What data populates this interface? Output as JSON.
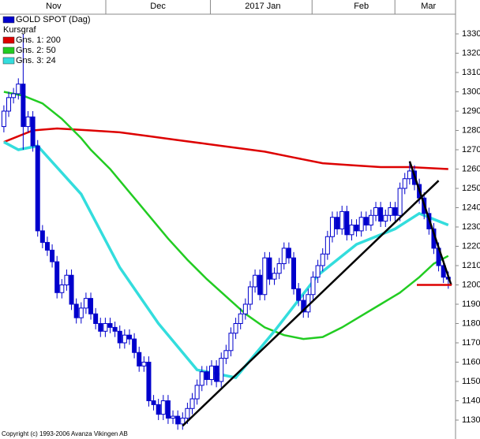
{
  "chart_data": {
    "type": "candlestick",
    "legend_title": "Kursgraf",
    "legend": "upper left",
    "footnote": "Copyright (c) 1993-2006 Avanza Vikingen AB",
    "xlim": [
      -0.8,
      93.5
    ],
    "xticks": [
      {
        "value": 10.3,
        "label": "Nov"
      },
      {
        "value": 31.9,
        "label": "Dec"
      },
      {
        "value": 53.6,
        "label": "2017 Jan"
      },
      {
        "value": 74,
        "label": "Feb"
      },
      {
        "value": 87.9,
        "label": "Mar"
      }
    ],
    "ylim": [
      1120.2,
      1340.2
    ],
    "yticks": [
      1130,
      1140,
      1150,
      1160,
      1170,
      1180,
      1190,
      1200,
      1210,
      1220,
      1230,
      1240,
      1250,
      1260,
      1270,
      1280,
      1290,
      1300,
      1310,
      1320,
      1330
    ],
    "series": [
      {
        "name": "GOLD SPOT (Dag)",
        "color": "#0000cc",
        "x": [
          0,
          1,
          2,
          3,
          4,
          5,
          6,
          7,
          8,
          9,
          10,
          11,
          12,
          13,
          14,
          15,
          16,
          17,
          18,
          19,
          20,
          21,
          22,
          23,
          24,
          25,
          26,
          27,
          28,
          29,
          30,
          31,
          32,
          33,
          34,
          35,
          36,
          37,
          38,
          39,
          40,
          41,
          42,
          43,
          44,
          45,
          46,
          47,
          48,
          49,
          50,
          51,
          52,
          53,
          54,
          55,
          56,
          57,
          58,
          59,
          60,
          61,
          62,
          63,
          64,
          65,
          66,
          67,
          68,
          69,
          70,
          71,
          72,
          73,
          74,
          75,
          76,
          77,
          78,
          79,
          80,
          81,
          82,
          83,
          84,
          85,
          86,
          87,
          88,
          89,
          90,
          91,
          92
        ],
        "open": [
          1282,
          1290,
          1297,
          1299,
          1304,
          1282,
          1287,
          1272,
          1228,
          1222,
          1218,
          1212,
          1196,
          1200,
          1205,
          1190,
          1183,
          1188,
          1193,
          1185,
          1180,
          1176,
          1180,
          1178,
          1176,
          1170,
          1174,
          1172,
          1165,
          1158,
          1160,
          1140,
          1138,
          1133,
          1140,
          1131,
          1132,
          1128,
          1131,
          1136,
          1141,
          1148,
          1155,
          1151,
          1158,
          1150,
          1162,
          1166,
          1175,
          1180,
          1185,
          1190,
          1199,
          1205,
          1195,
          1214,
          1203,
          1206,
          1211,
          1219,
          1214,
          1198,
          1192,
          1186,
          1195,
          1204,
          1210,
          1216,
          1225,
          1235,
          1229,
          1238,
          1226,
          1231,
          1228,
          1235,
          1231,
          1236,
          1240,
          1233,
          1236,
          1240,
          1236,
          1250,
          1255,
          1259,
          1252,
          1245,
          1237,
          1229,
          1219,
          1210,
          1204
        ],
        "high": [
          1293,
          1300,
          1302,
          1307,
          1330,
          1290,
          1290,
          1275,
          1231,
          1225,
          1221,
          1215,
          1203,
          1208,
          1208,
          1193,
          1191,
          1196,
          1196,
          1188,
          1183,
          1183,
          1183,
          1181,
          1179,
          1177,
          1177,
          1175,
          1168,
          1163,
          1163,
          1143,
          1141,
          1143,
          1143,
          1135,
          1135,
          1134,
          1139,
          1144,
          1151,
          1158,
          1158,
          1161,
          1161,
          1165,
          1169,
          1178,
          1183,
          1188,
          1193,
          1202,
          1208,
          1208,
          1217,
          1217,
          1209,
          1214,
          1222,
          1222,
          1217,
          1201,
          1195,
          1198,
          1207,
          1213,
          1219,
          1228,
          1238,
          1238,
          1241,
          1241,
          1234,
          1234,
          1238,
          1238,
          1239,
          1243,
          1243,
          1239,
          1243,
          1243,
          1253,
          1258,
          1264,
          1262,
          1255,
          1248,
          1240,
          1232,
          1222,
          1213,
          1207
        ],
        "low": [
          1279,
          1287,
          1294,
          1296,
          1270,
          1279,
          1269,
          1225,
          1219,
          1215,
          1209,
          1193,
          1193,
          1197,
          1187,
          1180,
          1180,
          1185,
          1182,
          1177,
          1173,
          1173,
          1175,
          1173,
          1167,
          1167,
          1169,
          1162,
          1155,
          1155,
          1137,
          1135,
          1130,
          1130,
          1128,
          1128,
          1125,
          1125,
          1128,
          1133,
          1138,
          1145,
          1148,
          1148,
          1147,
          1147,
          1159,
          1163,
          1172,
          1177,
          1182,
          1187,
          1196,
          1192,
          1192,
          1200,
          1200,
          1203,
          1208,
          1211,
          1195,
          1189,
          1183,
          1183,
          1192,
          1201,
          1207,
          1213,
          1222,
          1226,
          1226,
          1223,
          1223,
          1225,
          1225,
          1228,
          1228,
          1233,
          1230,
          1230,
          1233,
          1233,
          1233,
          1247,
          1252,
          1249,
          1242,
          1234,
          1226,
          1216,
          1207,
          1201,
          1198
        ],
        "close": [
          1290,
          1297,
          1299,
          1304,
          1282,
          1287,
          1272,
          1228,
          1222,
          1218,
          1212,
          1196,
          1200,
          1205,
          1190,
          1183,
          1188,
          1193,
          1185,
          1180,
          1176,
          1180,
          1178,
          1176,
          1170,
          1174,
          1172,
          1165,
          1158,
          1160,
          1140,
          1138,
          1133,
          1140,
          1131,
          1132,
          1128,
          1131,
          1136,
          1141,
          1148,
          1155,
          1151,
          1158,
          1150,
          1162,
          1166,
          1175,
          1180,
          1185,
          1190,
          1199,
          1205,
          1195,
          1214,
          1203,
          1206,
          1211,
          1219,
          1214,
          1198,
          1192,
          1186,
          1195,
          1204,
          1210,
          1216,
          1225,
          1235,
          1229,
          1238,
          1226,
          1231,
          1228,
          1235,
          1231,
          1236,
          1240,
          1233,
          1236,
          1240,
          1236,
          1250,
          1255,
          1259,
          1252,
          1245,
          1237,
          1229,
          1219,
          1210,
          1204,
          1203
        ]
      }
    ],
    "lines": [
      {
        "name": "Gns. 1: 200",
        "color": "#dd0000",
        "x": [
          0,
          6,
          11,
          18,
          24,
          30,
          36,
          42,
          48,
          54,
          60,
          66,
          72,
          78,
          84,
          92
        ],
        "values": [
          1274,
          1280,
          1281,
          1280,
          1279,
          1277,
          1275,
          1273,
          1271,
          1269,
          1266,
          1263,
          1262,
          1261,
          1261,
          1260
        ]
      },
      {
        "name": "Gns. 2: 50",
        "color": "#22cc22",
        "x": [
          0,
          4,
          8,
          12,
          16,
          18,
          22,
          26,
          30,
          34,
          38,
          42,
          46,
          50,
          54,
          58,
          62,
          66,
          70,
          74,
          78,
          82,
          86,
          89,
          92
        ],
        "values": [
          1300,
          1298,
          1294,
          1286,
          1276,
          1270,
          1260,
          1248,
          1236,
          1224,
          1213,
          1203,
          1194,
          1185,
          1178,
          1174,
          1172,
          1173,
          1178,
          1184,
          1190,
          1196,
          1204,
          1211,
          1215
        ]
      },
      {
        "name": "Gns. 3: 24",
        "color": "#33dddd",
        "x": [
          0,
          3,
          7,
          16,
          24,
          32,
          40,
          48,
          56,
          65,
          73,
          81,
          86,
          88,
          92
        ],
        "values": [
          1274,
          1270,
          1272,
          1247,
          1209,
          1180,
          1156,
          1152,
          1176,
          1205,
          1221,
          1229,
          1237,
          1235,
          1231
        ]
      }
    ],
    "trendlines": [
      {
        "color": "#000000",
        "x": [
          37,
          90
        ],
        "values": [
          1127,
          1254
        ]
      },
      {
        "color": "#000000",
        "x": [
          84,
          92.6
        ],
        "values": [
          1264,
          1200
        ]
      },
      {
        "color": "#dd0000",
        "x": [
          85.5,
          92.7
        ],
        "values": [
          1200,
          1200
        ]
      }
    ]
  }
}
